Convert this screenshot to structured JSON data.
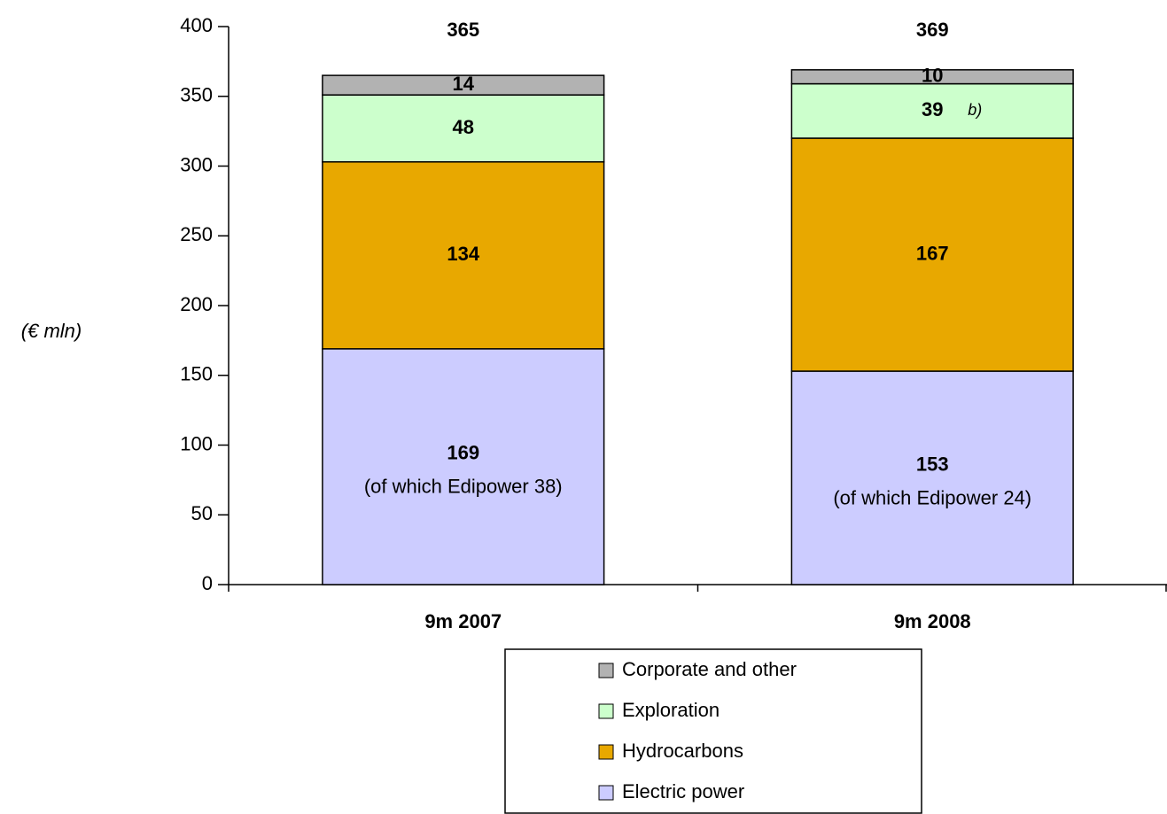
{
  "chart_data": {
    "type": "stacked_bar",
    "ylabel": "(€ mln)",
    "categories": [
      "9m 2007",
      "9m 2008"
    ],
    "series": [
      {
        "name": "Electric power",
        "color": "#ccccff",
        "values": [
          169,
          153
        ]
      },
      {
        "name": "Hydrocarbons",
        "color": "#e8a800",
        "values": [
          134,
          167
        ]
      },
      {
        "name": "Exploration",
        "color": "#ccffcc",
        "values": [
          48,
          39
        ]
      },
      {
        "name": "Corporate and other",
        "color": "#b2b2b2",
        "values": [
          14,
          10
        ]
      }
    ],
    "totals": [
      365,
      369
    ],
    "annotations": [
      "(of which Edipower 38)",
      "(of which Edipower 24)"
    ],
    "note": "b)",
    "ylim": [
      0,
      400
    ],
    "yticks": [
      0,
      50,
      100,
      150,
      200,
      250,
      300,
      350,
      400
    ],
    "legend": "bottom"
  }
}
